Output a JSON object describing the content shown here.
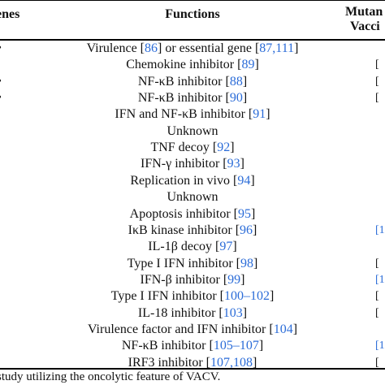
{
  "table": {
    "headers": {
      "genes": "enes",
      "functions": "Functions",
      "mutant": "Mutan",
      "vacc": "Vacci"
    },
    "rows": [
      {
        "pre": "Virulence [",
        "ref1": "86",
        "mid": "] or essential gene [",
        "ref2": "87,111",
        "post": "]",
        "left": "•",
        "right": ""
      },
      {
        "pre": "Chemokine inhibitor [",
        "ref1": "89",
        "mid": "]",
        "ref2": "",
        "post": "",
        "left": ".",
        "right": "["
      },
      {
        "pre": "NF-κB inhibitor [",
        "ref1": "88",
        "mid": "]",
        "ref2": "",
        "post": "",
        "left": "•",
        "right": "["
      },
      {
        "pre": "NF-κB inhibitor [",
        "ref1": "90",
        "mid": "]",
        "ref2": "",
        "post": "",
        "left": "•",
        "right": "["
      },
      {
        "pre": "IFN and NF-κB inhibitor [",
        "ref1": "91",
        "mid": "]",
        "ref2": "",
        "post": "",
        "left": "",
        "right": ""
      },
      {
        "pre": "Unknown",
        "ref1": "",
        "mid": "",
        "ref2": "",
        "post": "",
        "left": "",
        "right": ""
      },
      {
        "pre": "TNF decoy [",
        "ref1": "92",
        "mid": "]",
        "ref2": "",
        "post": "",
        "left": "",
        "right": ""
      },
      {
        "pre": "IFN-γ inhibitor [",
        "ref1": "93",
        "mid": "]",
        "ref2": "",
        "post": "",
        "left": "",
        "right": ""
      },
      {
        "pre": "Replication in vivo [",
        "ref1": "94",
        "mid": "]",
        "ref2": "",
        "post": "",
        "left": "",
        "right": ""
      },
      {
        "pre": "Unknown",
        "ref1": "",
        "mid": "",
        "ref2": "",
        "post": "",
        "left": ".",
        "right": ""
      },
      {
        "pre": "Apoptosis inhibitor [",
        "ref1": "95",
        "mid": "]",
        "ref2": "",
        "post": "",
        "left": "",
        "right": ""
      },
      {
        "pre": "IκB kinase inhibitor [",
        "ref1": "96",
        "mid": "]",
        "ref2": "",
        "post": "",
        "left": ".",
        "right": "[1"
      },
      {
        "pre": "IL-1β decoy [",
        "ref1": "97",
        "mid": "]",
        "ref2": "",
        "post": "",
        "left": "",
        "right": ""
      },
      {
        "pre": "Type I IFN inhibitor [",
        "ref1": "98",
        "mid": "]",
        "ref2": "",
        "post": "",
        "left": ".",
        "right": "["
      },
      {
        "pre": "IFN-β inhibitor [",
        "ref1": "99",
        "mid": "]",
        "ref2": "",
        "post": "",
        "left": "",
        "right": "[1"
      },
      {
        "pre": "Type I IFN inhibitor [",
        "ref1": "100–102",
        "mid": "]",
        "ref2": "",
        "post": "",
        "left": "",
        "right": "["
      },
      {
        "pre": "IL-18 inhibitor [",
        "ref1": "103",
        "mid": "]",
        "ref2": "",
        "post": "",
        "left": ".",
        "right": "["
      },
      {
        "pre": "Virulence factor and IFN inhibitor [",
        "ref1": "104",
        "mid": "]",
        "ref2": "",
        "post": "",
        "left": "",
        "right": ""
      },
      {
        "pre": "NF-κB inhibitor [",
        "ref1": "105–107",
        "mid": "]",
        "ref2": "",
        "post": "",
        "left": "",
        "right": "[1"
      },
      {
        "pre": "IRF3 inhibitor [",
        "ref1": "107,108",
        "mid": "]",
        "ref2": "",
        "post": "",
        "left": "",
        "right": "["
      }
    ],
    "footnote": "study utilizing the oncolytic feature of VACV."
  }
}
